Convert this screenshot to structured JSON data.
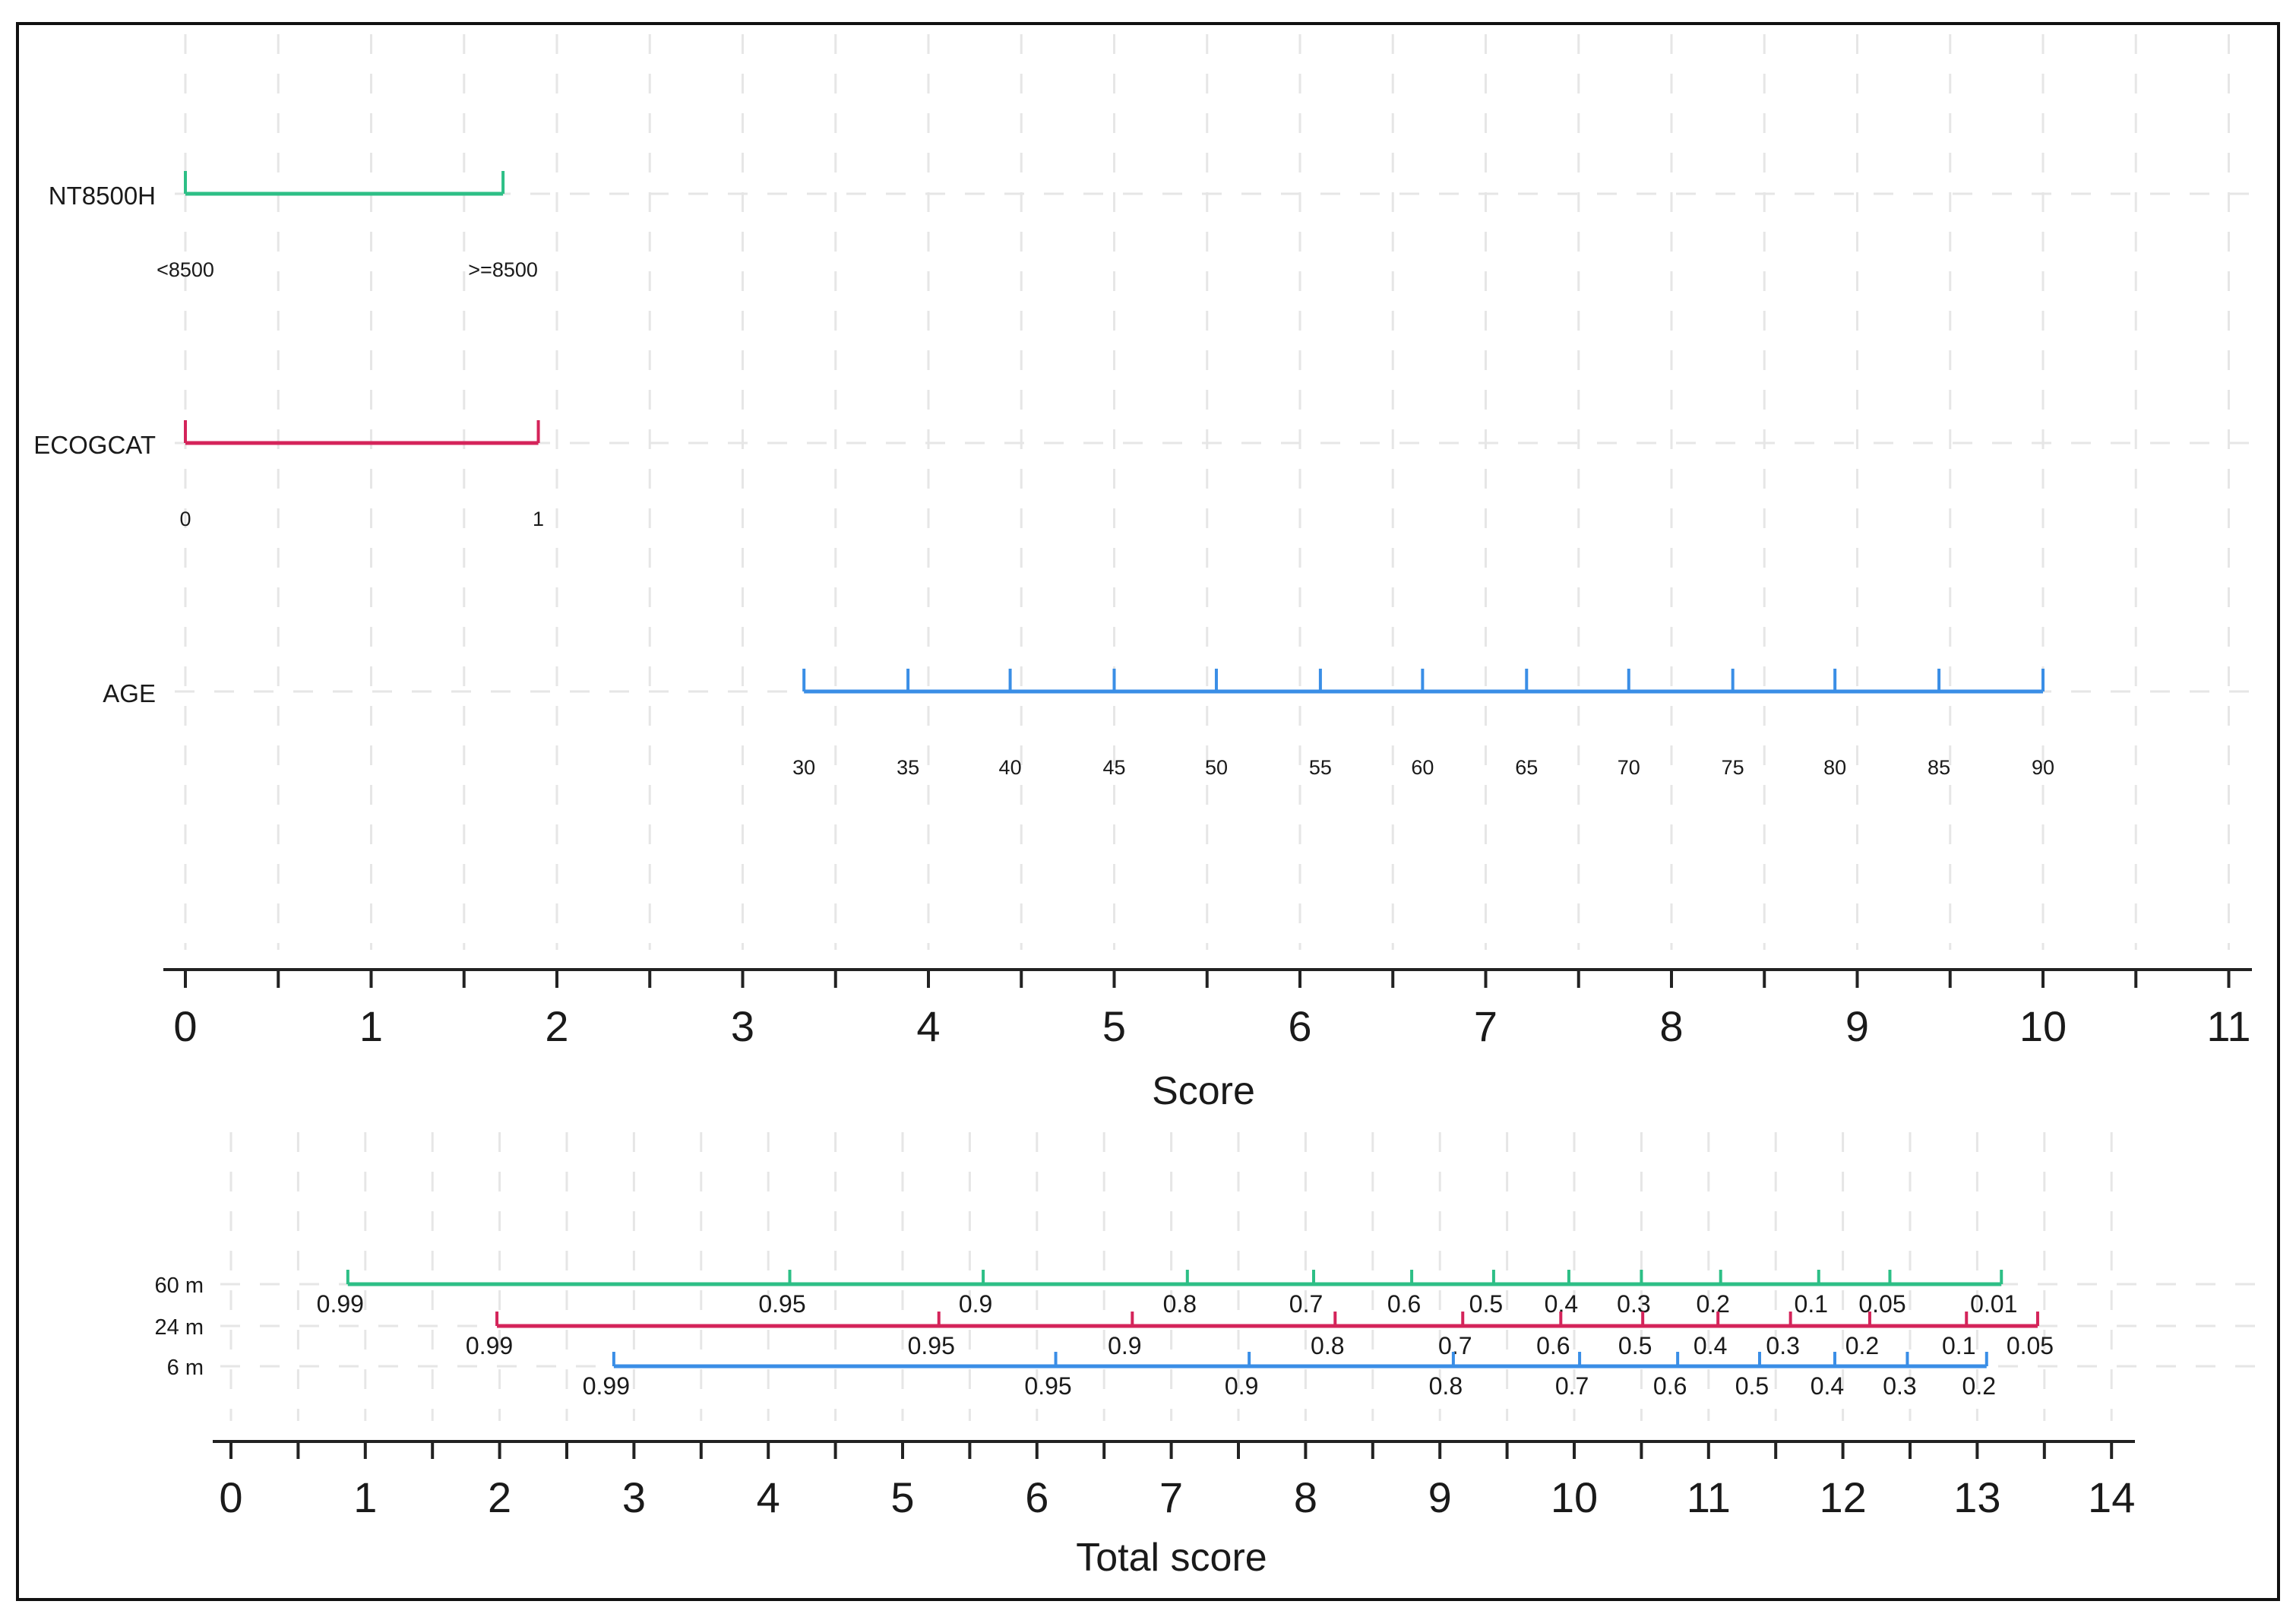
{
  "colors": {
    "green": "#2dbf86",
    "crimson": "#d4245a",
    "blue": "#3a8ee6",
    "axis": "#222222",
    "grid": "#e6e6e6"
  },
  "chart_data": [
    {
      "type": "nomogram",
      "panel": "points",
      "xlabel": "Score",
      "xlim": [
        0,
        11
      ],
      "ticks": [
        "0",
        "1",
        "2",
        "3",
        "4",
        "5",
        "6",
        "7",
        "8",
        "9",
        "10",
        "11"
      ],
      "variables": [
        {
          "name": "NT8500H",
          "color": "green",
          "scale": [
            {
              "label": "<8500",
              "score": 0
            },
            {
              "label": ">=8500",
              "score": 1.71
            }
          ]
        },
        {
          "name": "ECOGCAT",
          "color": "crimson",
          "scale": [
            {
              "label": "0",
              "score": 0
            },
            {
              "label": "1",
              "score": 1.9
            }
          ]
        },
        {
          "name": "AGE",
          "color": "blue",
          "scale": [
            {
              "label": "30",
              "score": 3.33
            },
            {
              "label": "35",
              "score": 3.89
            },
            {
              "label": "40",
              "score": 4.44
            },
            {
              "label": "45",
              "score": 5.0
            },
            {
              "label": "50",
              "score": 5.55
            },
            {
              "label": "55",
              "score": 6.11
            },
            {
              "label": "60",
              "score": 6.66
            },
            {
              "label": "65",
              "score": 7.22
            },
            {
              "label": "70",
              "score": 7.77
            },
            {
              "label": "75",
              "score": 8.33
            },
            {
              "label": "80",
              "score": 8.88
            },
            {
              "label": "85",
              "score": 9.44
            },
            {
              "label": "90",
              "score": 10.0
            }
          ]
        }
      ]
    },
    {
      "type": "nomogram",
      "panel": "survival",
      "xlabel": "Total score",
      "xlim": [
        0,
        14
      ],
      "ticks": [
        "0",
        "1",
        "2",
        "3",
        "4",
        "5",
        "6",
        "7",
        "8",
        "9",
        "10",
        "11",
        "12",
        "13",
        "14"
      ],
      "series": [
        {
          "name": "60 m",
          "color": "green",
          "points": [
            {
              "label": "0.99",
              "score": 0.87
            },
            {
              "label": "0.95",
              "score": 4.16
            },
            {
              "label": "0.9",
              "score": 5.6
            },
            {
              "label": "0.8",
              "score": 7.12
            },
            {
              "label": "0.7",
              "score": 8.06
            },
            {
              "label": "0.6",
              "score": 8.79
            },
            {
              "label": "0.5",
              "score": 9.4
            },
            {
              "label": "0.4",
              "score": 9.96
            },
            {
              "label": "0.3",
              "score": 10.5
            },
            {
              "label": "0.2",
              "score": 11.09
            },
            {
              "label": "0.1",
              "score": 11.82
            },
            {
              "label": "0.05",
              "score": 12.35
            },
            {
              "label": "0.01",
              "score": 13.18
            }
          ]
        },
        {
          "name": "24 m",
          "color": "crimson",
          "points": [
            {
              "label": "0.99",
              "score": 1.98
            },
            {
              "label": "0.95",
              "score": 5.27
            },
            {
              "label": "0.9",
              "score": 6.71
            },
            {
              "label": "0.8",
              "score": 8.22
            },
            {
              "label": "0.7",
              "score": 9.17
            },
            {
              "label": "0.6",
              "score": 9.9
            },
            {
              "label": "0.5",
              "score": 10.51
            },
            {
              "label": "0.4",
              "score": 11.07
            },
            {
              "label": "0.3",
              "score": 11.61
            },
            {
              "label": "0.2",
              "score": 12.2
            },
            {
              "label": "0.1",
              "score": 12.92
            },
            {
              "label": "0.05",
              "score": 13.45
            }
          ]
        },
        {
          "name": "6 m",
          "color": "blue",
          "points": [
            {
              "label": "0.99",
              "score": 2.85
            },
            {
              "label": "0.95",
              "score": 6.14
            },
            {
              "label": "0.9",
              "score": 7.58
            },
            {
              "label": "0.8",
              "score": 9.1
            },
            {
              "label": "0.7",
              "score": 10.04
            },
            {
              "label": "0.6",
              "score": 10.77
            },
            {
              "label": "0.5",
              "score": 11.38
            },
            {
              "label": "0.4",
              "score": 11.94
            },
            {
              "label": "0.3",
              "score": 12.48
            },
            {
              "label": "0.2",
              "score": 13.07
            }
          ]
        }
      ]
    }
  ]
}
